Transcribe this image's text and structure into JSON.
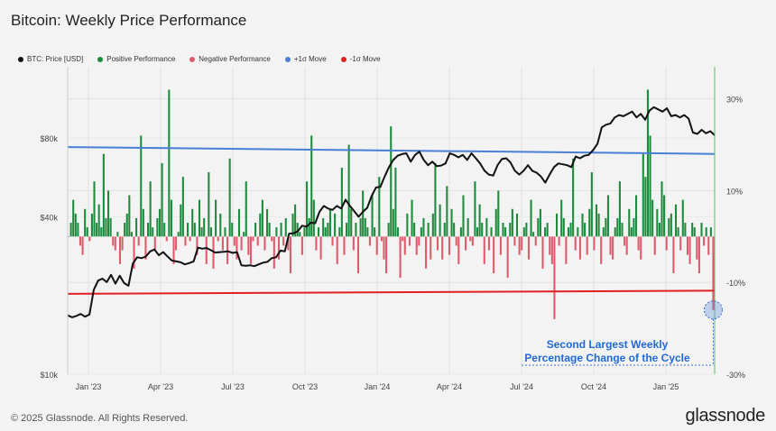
{
  "title": "Bitcoin: Weekly Price Performance",
  "legend": [
    {
      "label": "BTC: Price [USD]",
      "color": "#111111"
    },
    {
      "label": "Positive Performance",
      "color": "#1e8a3c"
    },
    {
      "label": "Negative Performance",
      "color": "#e05a6d"
    },
    {
      "label": "+1σ Move",
      "color": "#4a7fd6"
    },
    {
      "label": "-1σ Move",
      "color": "#e02020"
    }
  ],
  "annotation": {
    "line1": "Second Largest Weekly",
    "line2": "Percentage Change of the Cycle"
  },
  "footer": {
    "copyright": "© 2025 Glassnode. All Rights Reserved.",
    "brand": "glassnode"
  },
  "chart_data": {
    "type": "bar",
    "title": "Bitcoin: Weekly Price Performance",
    "x_ticks": [
      "Jan '23",
      "Apr '23",
      "Jul '23",
      "Oct '23",
      "Jan '24",
      "Apr '24",
      "Jul '24",
      "Oct '24",
      "Jan '25"
    ],
    "left_axis": {
      "scale": "log",
      "ticks": [
        "$10k",
        "$40k",
        "$80k"
      ],
      "ylim": [
        10000,
        150000
      ]
    },
    "right_axis": {
      "ticks": [
        "30%",
        "10%",
        "-10%",
        "-30%"
      ],
      "ylim": [
        -30,
        37
      ]
    },
    "plus_sigma": [
      19.5,
      18.0
    ],
    "minus_sigma": [
      -12.5,
      -11.8
    ],
    "performance_series": [
      0,
      3,
      8,
      5,
      3,
      -2,
      -4,
      6,
      2,
      -1,
      5,
      12,
      3,
      7,
      2,
      18,
      4,
      10,
      4,
      -2,
      -3,
      1,
      -6,
      -3,
      3,
      5,
      9,
      1,
      -7,
      4,
      -2,
      22,
      6,
      -5,
      3,
      12,
      2,
      -3,
      4,
      6,
      16,
      3,
      -1,
      32,
      8,
      -6,
      -3,
      1,
      7,
      13,
      -2,
      3,
      -1,
      6,
      3,
      -4,
      8,
      2,
      4,
      -6,
      14,
      2,
      -7,
      8,
      -1,
      5,
      -3,
      2,
      -6,
      17,
      3,
      -2,
      -5,
      6,
      -3,
      1,
      12,
      -4,
      -6,
      -1,
      3,
      -2,
      5,
      8,
      -3,
      6,
      3,
      -1,
      -7,
      2,
      -5,
      3,
      -2,
      4,
      -3,
      -8,
      5,
      7,
      3,
      1,
      -4,
      2,
      12,
      4,
      22,
      8,
      -3,
      2,
      -5,
      4,
      2,
      3,
      6,
      -2,
      5,
      -6,
      2,
      15,
      -4,
      3,
      20,
      6,
      -3,
      3,
      -8,
      4,
      10,
      4,
      2,
      -2,
      9,
      2,
      -4,
      13,
      -1,
      -5,
      -8,
      3,
      24,
      6,
      15,
      2,
      -9,
      -1,
      -4,
      5,
      -2,
      8,
      3,
      -4,
      -2,
      2,
      4,
      -7,
      3,
      -5,
      5,
      16,
      -3,
      7,
      -5,
      3,
      11,
      -4,
      6,
      3,
      -2,
      -6,
      2,
      9,
      -3,
      4,
      -1,
      -2,
      12,
      2,
      7,
      3,
      -6,
      4,
      -3,
      2,
      -8,
      6,
      10,
      -4,
      3,
      2,
      -9,
      3,
      6,
      -2,
      5,
      -4,
      -3,
      2,
      3,
      -5,
      8,
      1,
      -2,
      4,
      6,
      -7,
      2,
      3,
      -4,
      -6,
      -18,
      5,
      -2,
      8,
      4,
      -6,
      2,
      3,
      17,
      -3,
      2,
      -5,
      5,
      3,
      -4,
      6,
      14,
      -3,
      7,
      5,
      -6,
      2,
      4,
      9,
      -4,
      -5,
      2,
      4,
      12,
      3,
      -2,
      -4,
      6,
      2,
      4,
      9,
      -3,
      -5,
      18,
      13,
      32,
      22,
      8,
      -4,
      6,
      3,
      12,
      9,
      -3,
      4,
      5,
      -8,
      7,
      2,
      -3,
      8,
      3,
      -4,
      -6,
      3,
      2,
      -5,
      -8,
      3,
      -2,
      2,
      -4,
      2,
      -16
    ],
    "btc_price_series": [
      16800,
      16500,
      16700,
      17000,
      16600,
      16900,
      21000,
      22800,
      23200,
      22500,
      24000,
      22200,
      23800,
      22300,
      21800,
      26500,
      28000,
      27800,
      28200,
      29500,
      30000,
      28500,
      29300,
      28200,
      27200,
      27000,
      26800,
      26300,
      26600,
      27000,
      30500,
      30200,
      30400,
      29800,
      29200,
      29300,
      29400,
      29500,
      29100,
      29300,
      26100,
      26000,
      26100,
      25900,
      26300,
      26700,
      26900,
      27800,
      28000,
      29700,
      29500,
      34500,
      34600,
      35200,
      37000,
      36700,
      38000,
      37800,
      41800,
      44000,
      43000,
      42500,
      44000,
      43000,
      46500,
      44000,
      42000,
      40000,
      41800,
      43300,
      48000,
      51800,
      52000,
      57000,
      62000,
      66000,
      68500,
      69500,
      70000,
      65000,
      69000,
      71000,
      66000,
      63000,
      65000,
      62500,
      62800,
      64000,
      70000,
      69000,
      67500,
      69000,
      66000,
      70000,
      67000,
      64000,
      60000,
      58000,
      57500,
      63000,
      66500,
      67000,
      64500,
      60000,
      58000,
      60000,
      63000,
      60000,
      59000,
      57000,
      54000,
      58000,
      62000,
      64000,
      63500,
      63000,
      62000,
      68000,
      67000,
      68500,
      69000,
      72000,
      76000,
      88000,
      90000,
      91000,
      96000,
      98000,
      97000,
      99000,
      101000,
      96000,
      99000,
      94000,
      102000,
      105000,
      103000,
      101000,
      104000,
      97000,
      98000,
      96000,
      98000,
      95000,
      84000,
      83000,
      86000,
      83500,
      85000,
      82000
    ]
  }
}
